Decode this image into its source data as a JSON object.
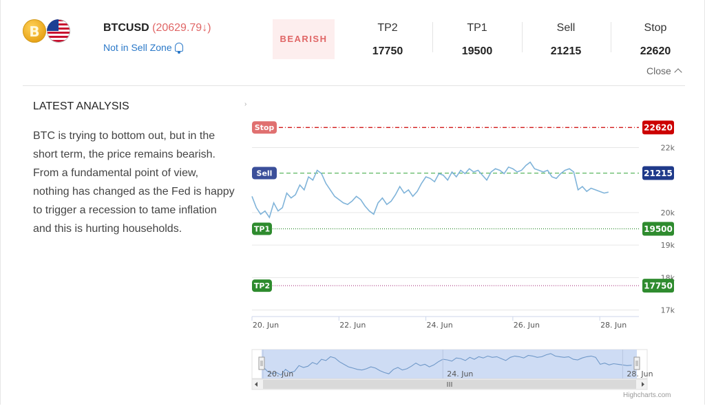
{
  "header": {
    "coin_icons": [
      "bitcoin-icon",
      "us-flag-icon"
    ],
    "btc_glyph": "B",
    "symbol": "BTCUSD",
    "price": "(20629.79↓)",
    "zone_status": "Not in Sell Zone",
    "bias": "BEARISH",
    "levels": [
      {
        "label": "TP2",
        "value": "17750"
      },
      {
        "label": "TP1",
        "value": "19500"
      },
      {
        "label": "Sell",
        "value": "21215"
      },
      {
        "label": "Stop",
        "value": "22620"
      }
    ],
    "close_label": "Close"
  },
  "analysis": {
    "title": "LATEST ANALYSIS",
    "text": "BTC is trying to bottom out, but in the short term, the price remains bearish. From a fundamental point of view, nothing has changed as the Fed is happy to trigger a recession to tame inflation and this is hurting households."
  },
  "colors": {
    "stop": "#cc0000",
    "sell": "#1f3a8a",
    "target": "#2e8b2e",
    "series": "#7fb3d9",
    "bearish": "#e06666"
  },
  "chart_data": {
    "type": "line",
    "title": "",
    "xlabel": "",
    "ylabel": "",
    "ylim": [
      16800,
      22900
    ],
    "xlim": [
      0,
      8.9
    ],
    "x_ticks": [
      {
        "x": 0,
        "label": "20. Jun"
      },
      {
        "x": 2,
        "label": "22. Jun"
      },
      {
        "x": 4,
        "label": "24. Jun"
      },
      {
        "x": 6,
        "label": "26. Jun"
      },
      {
        "x": 8,
        "label": "28. Jun"
      }
    ],
    "y_ticks": [
      {
        "y": 17000,
        "label": "17k"
      },
      {
        "y": 18000,
        "label": "18k"
      },
      {
        "y": 19000,
        "label": "19k"
      },
      {
        "y": 20000,
        "label": "20k"
      },
      {
        "y": 22000,
        "label": "22k"
      }
    ],
    "grid": true,
    "legend": "none",
    "plot_lines": [
      {
        "name": "Stop",
        "value": 22620,
        "label": "22620"
      },
      {
        "name": "Sell",
        "value": 21215,
        "label": "21215"
      },
      {
        "name": "TP1",
        "value": 19500,
        "label": "19500"
      },
      {
        "name": "TP2",
        "value": 17750,
        "label": "17750"
      }
    ],
    "series": [
      {
        "x": [
          0,
          0.1,
          0.2,
          0.3,
          0.4,
          0.5,
          0.6,
          0.7,
          0.8,
          0.9,
          1.0,
          1.1,
          1.2,
          1.3,
          1.4,
          1.5,
          1.6,
          1.7,
          1.8,
          1.9,
          2.0,
          2.1,
          2.2,
          2.3,
          2.4,
          2.5,
          2.6,
          2.7,
          2.8,
          2.9,
          3.0,
          3.1,
          3.2,
          3.3,
          3.4,
          3.5,
          3.6,
          3.7,
          3.8,
          3.9,
          4.0,
          4.1,
          4.2,
          4.3,
          4.4,
          4.5,
          4.6,
          4.7,
          4.8,
          4.9,
          5.0,
          5.1,
          5.2,
          5.3,
          5.4,
          5.5,
          5.6,
          5.7,
          5.8,
          5.9,
          6.0,
          6.1,
          6.2,
          6.3,
          6.4,
          6.5,
          6.6,
          6.7,
          6.8,
          6.9,
          7.0,
          7.1,
          7.2,
          7.3,
          7.4,
          7.5,
          7.6,
          7.7,
          7.8,
          7.9,
          8.0,
          8.1,
          8.2
        ],
        "values": [
          20500,
          20150,
          19950,
          20050,
          19850,
          20300,
          20050,
          20150,
          20600,
          20450,
          20550,
          20850,
          20700,
          21100,
          21000,
          21300,
          21200,
          20900,
          20700,
          20500,
          20400,
          20300,
          20250,
          20350,
          20500,
          20400,
          20200,
          20050,
          19950,
          20300,
          20450,
          20250,
          20350,
          20550,
          20800,
          20600,
          20700,
          20500,
          20650,
          20900,
          21100,
          21050,
          20950,
          21200,
          21150,
          21000,
          21250,
          21100,
          21300,
          21200,
          21350,
          21250,
          21300,
          21150,
          21000,
          21250,
          21350,
          21300,
          21200,
          21400,
          21350,
          21250,
          21300,
          21450,
          21550,
          21350,
          21300,
          21250,
          21300,
          21100,
          21050,
          21200,
          21300,
          21350,
          21250,
          20700,
          20800,
          20650,
          20750,
          20700,
          20650,
          20600,
          20629.79
        ]
      }
    ],
    "navigator": {
      "x_ticks": [
        {
          "x": 0,
          "label": "20. Jun"
        },
        {
          "x": 4,
          "label": "24. Jun"
        },
        {
          "x": 8,
          "label": "28. Jun"
        }
      ]
    }
  },
  "credits": "Highcharts.com"
}
